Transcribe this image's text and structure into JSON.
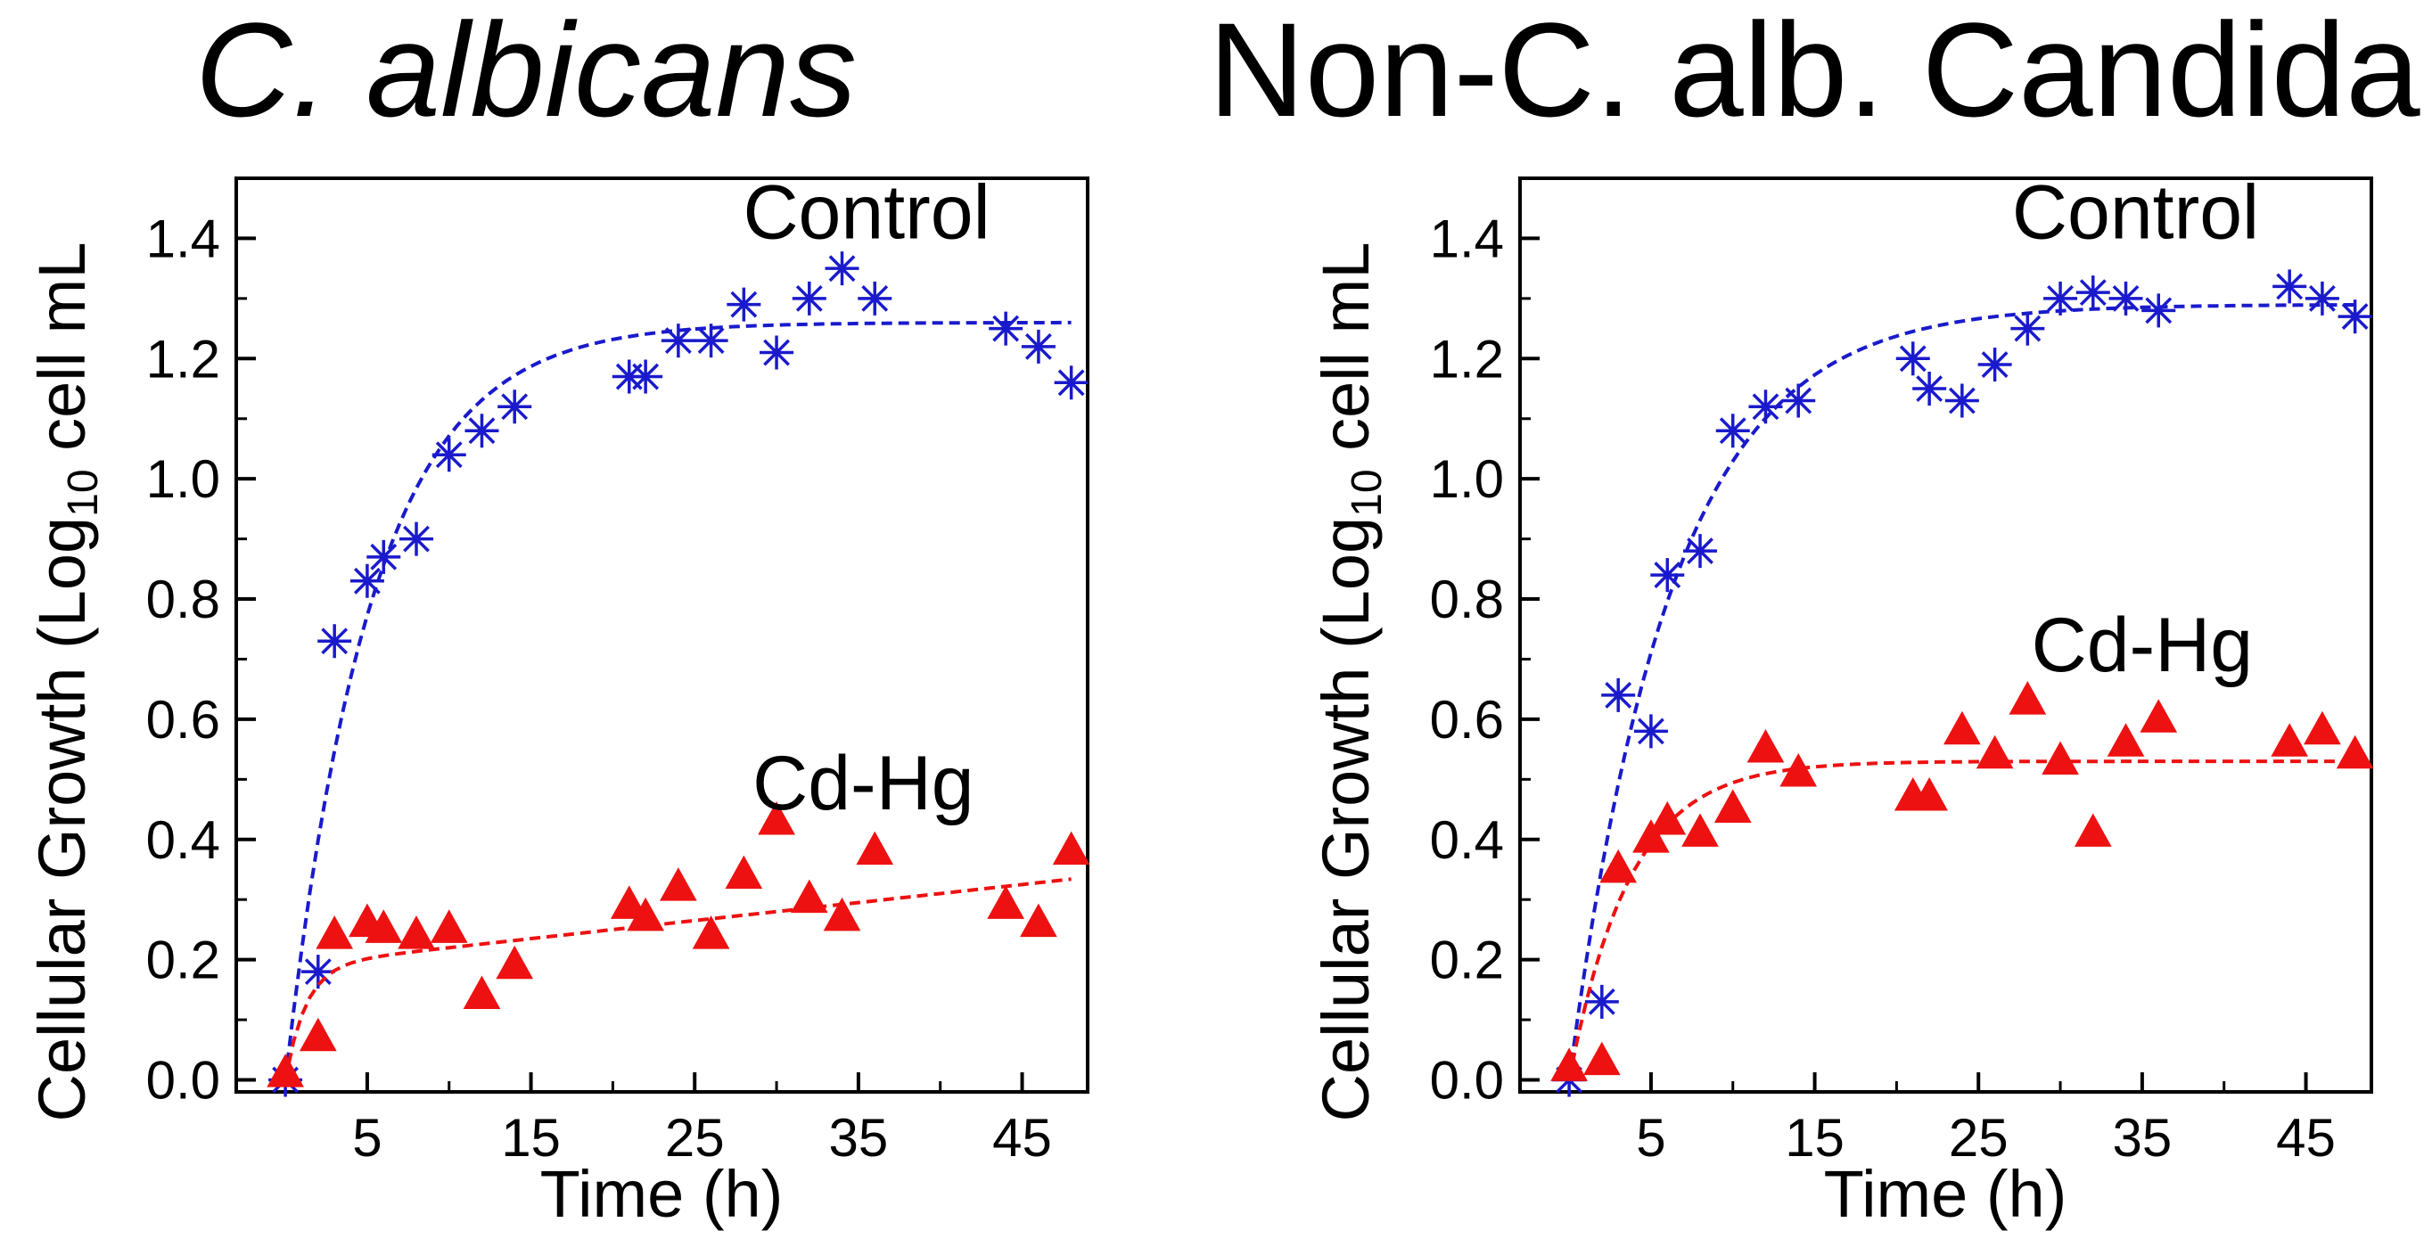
{
  "chart_data": [
    {
      "type": "scatter",
      "title": "C. albicans",
      "xlabel": "Time (h)",
      "ylabel_main": "Cellular Growth (Log",
      "ylabel_sub": "10",
      "ylabel_tail": " cell mL",
      "xlim": [
        -3,
        49
      ],
      "ylim": [
        -0.02,
        1.5
      ],
      "xticks": [
        5,
        15,
        25,
        35,
        45
      ],
      "yticks": [
        0.0,
        0.2,
        0.4,
        0.6,
        0.8,
        1.0,
        1.2,
        1.4
      ],
      "ytick_labels": [
        "0.0",
        "0.2",
        "0.4",
        "0.6",
        "0.8",
        "1.0",
        "1.2",
        "1.4"
      ],
      "series": [
        {
          "name": "Control",
          "color": "#1a1acc",
          "marker": "asterisk",
          "label_x": 35.5,
          "label_y": 1.4,
          "x": [
            0,
            2,
            3,
            5,
            6,
            8,
            10,
            12,
            14,
            21,
            22,
            24,
            26,
            28,
            30,
            32,
            34,
            36,
            44,
            46,
            48
          ],
          "y": [
            0.0,
            0.18,
            0.73,
            0.83,
            0.87,
            0.9,
            1.04,
            1.08,
            1.12,
            1.17,
            1.17,
            1.23,
            1.23,
            1.29,
            1.21,
            1.3,
            1.35,
            1.3,
            1.25,
            1.22,
            1.16
          ],
          "fit": {
            "a": 1.26,
            "k": 0.19,
            "xmax": 48
          }
        },
        {
          "name": "Cd-Hg",
          "color": "#ee1111",
          "marker": "triangle",
          "label_x": 35.3,
          "label_y": 0.45,
          "x": [
            0,
            2,
            3,
            5,
            6,
            8,
            10,
            12,
            14,
            21,
            22,
            24,
            26,
            28,
            30,
            32,
            34,
            36,
            44,
            46,
            48
          ],
          "y": [
            0.01,
            0.07,
            0.24,
            0.26,
            0.25,
            0.24,
            0.25,
            0.14,
            0.19,
            0.29,
            0.27,
            0.32,
            0.24,
            0.34,
            0.43,
            0.3,
            0.27,
            0.38,
            0.29,
            0.26,
            0.38
          ],
          "fit": {
            "a": 0.19,
            "k": 0.8,
            "b": 0.003,
            "xmax": 48
          }
        }
      ]
    },
    {
      "type": "scatter",
      "title": "Non-C. alb. Candida",
      "xlabel": "Time (h)",
      "ylabel_main": "Cellular Growth (Log",
      "ylabel_sub": "10",
      "ylabel_tail": " cell mL",
      "xlim": [
        -3,
        49
      ],
      "ylim": [
        -0.02,
        1.5
      ],
      "xticks": [
        5,
        15,
        25,
        35,
        45
      ],
      "yticks": [
        0.0,
        0.2,
        0.4,
        0.6,
        0.8,
        1.0,
        1.2,
        1.4
      ],
      "ytick_labels": [
        "0.0",
        "0.2",
        "0.4",
        "0.6",
        "0.8",
        "1.0",
        "1.2",
        "1.4"
      ],
      "series": [
        {
          "name": "Control",
          "color": "#1a1acc",
          "marker": "asterisk",
          "label_x": 34.6,
          "label_y": 1.4,
          "x": [
            0,
            2,
            3,
            5,
            6,
            8,
            10,
            12,
            14,
            21,
            22,
            24,
            26,
            28,
            30,
            32,
            34,
            36,
            44,
            46,
            48
          ],
          "y": [
            0.0,
            0.13,
            0.64,
            0.58,
            0.84,
            0.88,
            1.08,
            1.12,
            1.13,
            1.2,
            1.15,
            1.13,
            1.19,
            1.25,
            1.3,
            1.31,
            1.3,
            1.28,
            1.32,
            1.3,
            1.27
          ],
          "fit": {
            "a": 1.29,
            "k": 0.16,
            "xmax": 48
          }
        },
        {
          "name": "Cd-Hg",
          "color": "#ee1111",
          "marker": "triangle",
          "label_x": 35.0,
          "label_y": 0.68,
          "x": [
            0,
            2,
            3,
            5,
            6,
            8,
            10,
            12,
            14,
            21,
            22,
            24,
            26,
            28,
            30,
            32,
            34,
            36,
            44,
            46,
            48
          ],
          "y": [
            0.02,
            0.03,
            0.35,
            0.4,
            0.43,
            0.41,
            0.45,
            0.55,
            0.51,
            0.47,
            0.47,
            0.58,
            0.54,
            0.63,
            0.53,
            0.41,
            0.56,
            0.6,
            0.56,
            0.58,
            0.54
          ],
          "fit": {
            "a": 0.53,
            "k": 0.27,
            "xmax": 48
          }
        }
      ]
    }
  ]
}
